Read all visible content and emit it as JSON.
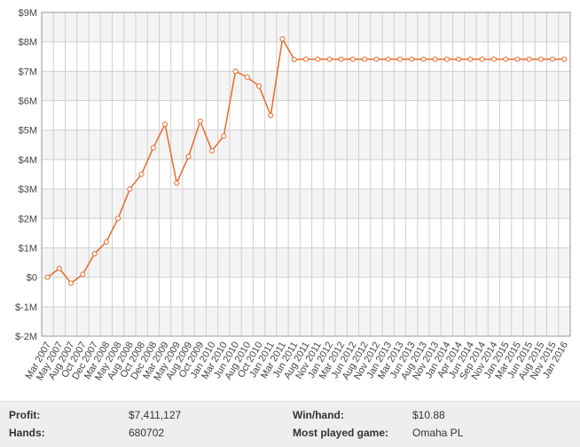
{
  "chart_data": {
    "type": "line",
    "categories": [
      "Mar 2007",
      "May 2007",
      "Aug 2007",
      "Oct 2007",
      "Dec 2007",
      "Mar 2008",
      "May 2008",
      "Aug 2008",
      "Oct 2008",
      "Dec 2008",
      "Mar 2009",
      "May 2009",
      "Aug 2009",
      "Oct 2009",
      "Jan 2010",
      "Mar 2010",
      "Jun 2010",
      "Aug 2010",
      "Oct 2010",
      "Jan 2011",
      "Mar 2011",
      "Jun 2011",
      "Aug 2011",
      "Nov 2011",
      "Jan 2012",
      "Mar 2012",
      "Jun 2012",
      "Aug 2012",
      "Nov 2012",
      "Jan 2013",
      "Mar 2013",
      "Jun 2013",
      "Aug 2013",
      "Nov 2013",
      "Jan 2014",
      "Apr 2014",
      "Jun 2014",
      "Sep 2014",
      "Nov 2014",
      "Jan 2015",
      "Mar 2015",
      "Jun 2015",
      "Aug 2015",
      "Nov 2015",
      "Jan 2016"
    ],
    "series": [
      {
        "color": "#e8692a",
        "values": [
          0,
          300000,
          -200000,
          100000,
          800000,
          1200000,
          2000000,
          3000000,
          3500000,
          4400000,
          5200000,
          3200000,
          4100000,
          5300000,
          4300000,
          4800000,
          7000000,
          6800000,
          6500000,
          5500000,
          8100000,
          7400000,
          7411127,
          7411127,
          7411127,
          7411127,
          7411127,
          7411127,
          7411127,
          7411127,
          7411127,
          7411127,
          7411127,
          7411127,
          7411127,
          7411127,
          7411127,
          7411127,
          7411127,
          7411127,
          7411127,
          7411127,
          7411127,
          7411127,
          7411127
        ]
      }
    ],
    "ylim": [
      -2000000,
      9000000
    ],
    "yticks": [
      {
        "value": -2000000,
        "label": "$-2M"
      },
      {
        "value": -1000000,
        "label": "$-1M"
      },
      {
        "value": 0,
        "label": "$0"
      },
      {
        "value": 1000000,
        "label": "$1M"
      },
      {
        "value": 2000000,
        "label": "$2M"
      },
      {
        "value": 3000000,
        "label": "$3M"
      },
      {
        "value": 4000000,
        "label": "$4M"
      },
      {
        "value": 5000000,
        "label": "$5M"
      },
      {
        "value": 6000000,
        "label": "$6M"
      },
      {
        "value": 7000000,
        "label": "$7M"
      },
      {
        "value": 8000000,
        "label": "$8M"
      },
      {
        "value": 9000000,
        "label": "$9M"
      }
    ],
    "grid": true
  },
  "stats": [
    {
      "label": "Profit:",
      "value": "$7,411,127"
    },
    {
      "label": "Hands:",
      "value": "680702"
    },
    {
      "label": "Win/hand:",
      "value": "$10.88"
    },
    {
      "label": "Most played game:",
      "value": "Omaha PL"
    }
  ]
}
